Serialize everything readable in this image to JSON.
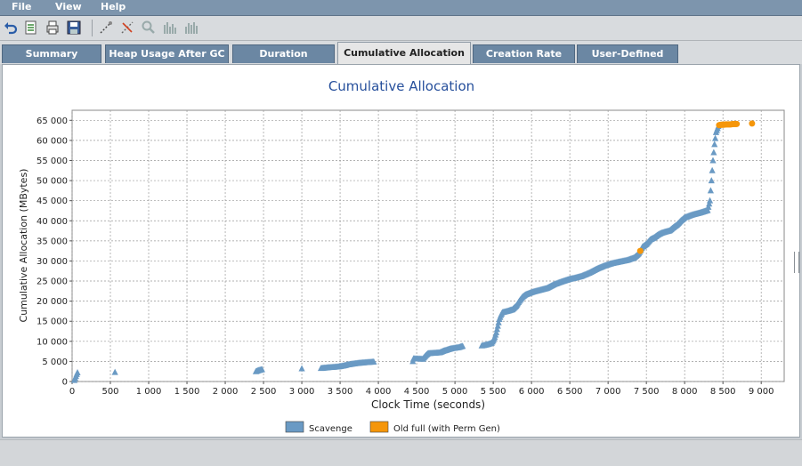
{
  "menu": {
    "file": "File",
    "view": "View",
    "help": "Help"
  },
  "toolbar": {
    "buttons": [
      "undo-icon",
      "open-file-icon",
      "print-icon",
      "save-icon",
      "select-tool-icon",
      "disabled-tool-icon",
      "zoom-icon",
      "bar-chart-icon",
      "bar-chart-alt-icon"
    ]
  },
  "tabs": [
    {
      "label": "Summary"
    },
    {
      "label": "Heap Usage After GC"
    },
    {
      "label": "Duration"
    },
    {
      "label": "Cumulative Allocation"
    },
    {
      "label": "Creation Rate"
    },
    {
      "label": "User-Defined"
    }
  ],
  "active_tab": "Cumulative Allocation",
  "chart_data": {
    "type": "scatter",
    "title": "Cumulative Allocation",
    "xlabel": "Clock Time  (seconds)",
    "ylabel": "Cumulative Allocation  (MBytes)",
    "xlim": [
      0,
      9300
    ],
    "ylim": [
      0,
      67500
    ],
    "xticks": [
      0,
      500,
      1000,
      1500,
      2000,
      2500,
      3000,
      3500,
      4000,
      4500,
      5000,
      5500,
      6000,
      6500,
      7000,
      7500,
      8000,
      8500,
      9000
    ],
    "xtick_labels": [
      "0",
      "500",
      "1 000",
      "1 500",
      "2 000",
      "2 500",
      "3 000",
      "3 500",
      "4 000",
      "4 500",
      "5 000",
      "5 500",
      "6 000",
      "6 500",
      "7 000",
      "7 500",
      "8 000",
      "8 500",
      "9 000"
    ],
    "yticks": [
      0,
      5000,
      10000,
      15000,
      20000,
      25000,
      30000,
      35000,
      40000,
      45000,
      50000,
      55000,
      60000,
      65000
    ],
    "ytick_labels": [
      "0",
      "5 000",
      "10 000",
      "15 000",
      "20 000",
      "25 000",
      "30 000",
      "35 000",
      "40 000",
      "45 000",
      "50 000",
      "55 000",
      "60 000",
      "65 000"
    ],
    "grid": true,
    "legend_position": "bottom",
    "series": [
      {
        "name": "Scavenge",
        "color": "#6a9ac4",
        "marker": "triangle",
        "points": [
          [
            30,
            300
          ],
          [
            40,
            800
          ],
          [
            50,
            1300
          ],
          [
            60,
            1800
          ],
          [
            70,
            2200
          ],
          [
            560,
            2300
          ],
          [
            2400,
            2500
          ],
          [
            2440,
            2800
          ],
          [
            2480,
            3000
          ],
          [
            3000,
            3200
          ],
          [
            3250,
            3300
          ],
          [
            3350,
            3500
          ],
          [
            3480,
            3700
          ],
          [
            3540,
            3900
          ],
          [
            3600,
            4200
          ],
          [
            3700,
            4500
          ],
          [
            3800,
            4700
          ],
          [
            3940,
            4900
          ],
          [
            4450,
            5000
          ],
          [
            4460,
            5700
          ],
          [
            4580,
            5600
          ],
          [
            4620,
            6500
          ],
          [
            4650,
            7000
          ],
          [
            4800,
            7200
          ],
          [
            4850,
            7600
          ],
          [
            4900,
            7900
          ],
          [
            4950,
            8200
          ],
          [
            5050,
            8500
          ],
          [
            5100,
            8800
          ],
          [
            5350,
            8900
          ],
          [
            5420,
            9200
          ],
          [
            5480,
            9600
          ],
          [
            5500,
            10200
          ],
          [
            5520,
            11000
          ],
          [
            5540,
            12200
          ],
          [
            5560,
            13800
          ],
          [
            5580,
            15500
          ],
          [
            5600,
            16500
          ],
          [
            5620,
            17200
          ],
          [
            5700,
            17600
          ],
          [
            5750,
            17900
          ],
          [
            5800,
            18800
          ],
          [
            5840,
            20000
          ],
          [
            5880,
            21000
          ],
          [
            5920,
            21600
          ],
          [
            6000,
            22200
          ],
          [
            6100,
            22700
          ],
          [
            6200,
            23200
          ],
          [
            6300,
            24200
          ],
          [
            6400,
            24900
          ],
          [
            6500,
            25500
          ],
          [
            6550,
            25700
          ],
          [
            6650,
            26200
          ],
          [
            6750,
            27000
          ],
          [
            6850,
            28000
          ],
          [
            6950,
            28800
          ],
          [
            7050,
            29400
          ],
          [
            7150,
            29800
          ],
          [
            7250,
            30200
          ],
          [
            7340,
            30800
          ],
          [
            7400,
            31800
          ],
          [
            7450,
            33500
          ],
          [
            7500,
            34200
          ],
          [
            7550,
            35300
          ],
          [
            7600,
            35800
          ],
          [
            7650,
            36500
          ],
          [
            7700,
            37000
          ],
          [
            7800,
            37500
          ],
          [
            7850,
            38300
          ],
          [
            7900,
            39000
          ],
          [
            7950,
            40000
          ],
          [
            8000,
            40800
          ],
          [
            8100,
            41500
          ],
          [
            8200,
            42000
          ],
          [
            8300,
            42600
          ],
          [
            8330,
            45000
          ],
          [
            8350,
            50000
          ],
          [
            8370,
            55000
          ],
          [
            8390,
            59000
          ],
          [
            8410,
            62000
          ],
          [
            8440,
            63500
          ]
        ]
      },
      {
        "name": "Old full (with Perm Gen)",
        "color": "#f5960a",
        "marker": "circle",
        "points": [
          [
            7420,
            32500
          ],
          [
            8450,
            63800
          ],
          [
            8480,
            63900
          ],
          [
            8510,
            63900
          ],
          [
            8540,
            64000
          ],
          [
            8570,
            64000
          ],
          [
            8600,
            64000
          ],
          [
            8640,
            64100
          ],
          [
            8680,
            64100
          ],
          [
            8880,
            64200
          ]
        ]
      }
    ]
  }
}
